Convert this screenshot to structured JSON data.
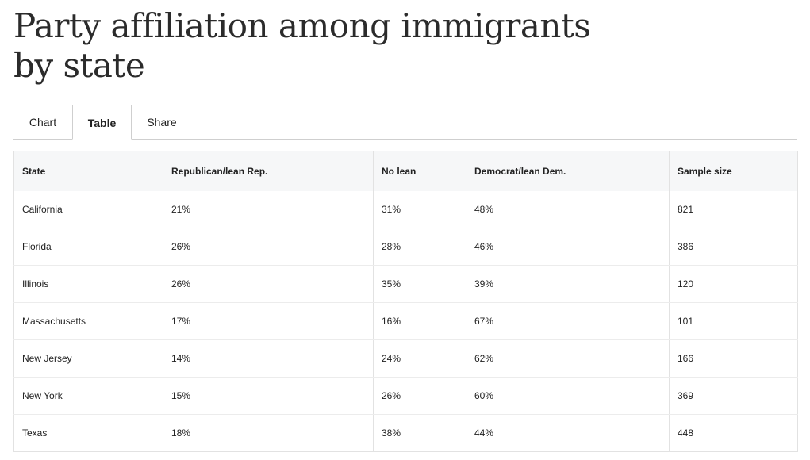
{
  "title": "Party affiliation among immigrants by state",
  "tabs": [
    {
      "label": "Chart",
      "active": false
    },
    {
      "label": "Table",
      "active": true
    },
    {
      "label": "Share",
      "active": false
    }
  ],
  "table": {
    "headers": [
      "State",
      "Republican/lean Rep.",
      "No lean",
      "Democrat/lean Dem.",
      "Sample size"
    ],
    "rows": [
      [
        "California",
        "21%",
        "31%",
        "48%",
        "821"
      ],
      [
        "Florida",
        "26%",
        "28%",
        "46%",
        "386"
      ],
      [
        "Illinois",
        "26%",
        "35%",
        "39%",
        "120"
      ],
      [
        "Massachusetts",
        "17%",
        "16%",
        "67%",
        "101"
      ],
      [
        "New Jersey",
        "14%",
        "24%",
        "62%",
        "166"
      ],
      [
        "New York",
        "15%",
        "26%",
        "60%",
        "369"
      ],
      [
        "Texas",
        "18%",
        "38%",
        "44%",
        "448"
      ]
    ]
  }
}
